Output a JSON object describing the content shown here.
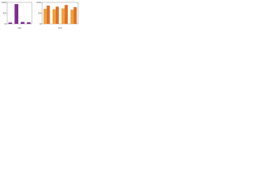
{
  "chart_data": [
    {
      "type": "bar",
      "caption": "(a)",
      "categories": [
        null,
        null,
        null,
        null
      ],
      "values": [
        6,
        92,
        9,
        7
      ],
      "color": "#7b2d8e",
      "ylim": [
        0,
        100
      ],
      "yticks": [
        0,
        50,
        100
      ],
      "grid": false
    },
    {
      "type": "grouped-bar",
      "caption": "(b)",
      "categories": [
        null,
        null,
        null,
        null
      ],
      "series": [
        {
          "color": "#f0a03c",
          "values": [
            70,
            68,
            72,
            66
          ]
        },
        {
          "color": "#e07020",
          "values": [
            85,
            80,
            88,
            78
          ]
        }
      ],
      "ylim": [
        0,
        100
      ],
      "yticks": [
        0,
        50,
        100
      ],
      "grid": false
    }
  ]
}
